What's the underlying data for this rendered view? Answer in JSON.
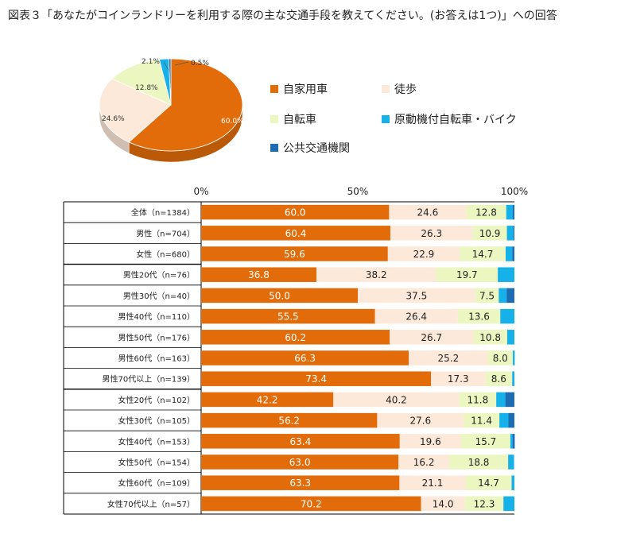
{
  "title": "図表３「あなたがコインランドリーを利用する際の主な交通手段を教えてください。(お答えは1つ)」への回答",
  "colors": {
    "car": "#E36C0A",
    "walk": "#FDE9D9",
    "bike": "#EBF6C1",
    "moped": "#17B1E9",
    "public": "#1C6CB4"
  },
  "legend": [
    {
      "label": "自家用車",
      "color_key": "car"
    },
    {
      "label": "徒歩",
      "color_key": "walk"
    },
    {
      "label": "自転車",
      "color_key": "bike"
    },
    {
      "label": "原動機付自転車・バイク",
      "color_key": "moped"
    },
    {
      "label": "公共交通機関",
      "color_key": "public"
    }
  ],
  "chart_data": [
    {
      "type": "pie",
      "slices": [
        {
          "name": "自家用車",
          "value": 60.0,
          "label": "60.0%"
        },
        {
          "name": "徒歩",
          "value": 24.6,
          "label": "24.6%"
        },
        {
          "name": "自転車",
          "value": 12.8,
          "label": "12.8%"
        },
        {
          "name": "原動機付自転車・バイク",
          "value": 2.1,
          "label": "2.1%"
        },
        {
          "name": "公共交通機関",
          "value": 0.5,
          "label": "0.5%"
        }
      ]
    },
    {
      "type": "bar",
      "stacked": true,
      "orientation": "horizontal",
      "xlim": [
        0,
        100
      ],
      "xticks": [
        "0%",
        "50%",
        "100%"
      ],
      "categories": [
        "全体（n=1384）",
        "男性（n=704）",
        "女性（n=680）",
        "男性20代（n=76）",
        "男性30代（n=40）",
        "男性40代（n=110）",
        "男性50代（n=176）",
        "男性60代（n=163）",
        "男性70代以上（n=139）",
        "女性20代（n=102）",
        "女性30代（n=105）",
        "女性40代（n=153）",
        "女性50代（n=154）",
        "女性60代（n=109）",
        "女性70代以上（n=57）"
      ],
      "series": [
        {
          "name": "自家用車",
          "values": [
            60.0,
            60.4,
            59.6,
            36.8,
            50.0,
            55.5,
            60.2,
            66.3,
            73.4,
            42.2,
            56.2,
            63.4,
            63.0,
            63.3,
            70.2
          ]
        },
        {
          "name": "徒歩",
          "values": [
            24.6,
            26.3,
            22.9,
            38.2,
            37.5,
            26.4,
            26.7,
            25.2,
            17.3,
            40.2,
            27.6,
            19.6,
            16.2,
            21.1,
            14.0
          ]
        },
        {
          "name": "自転車",
          "values": [
            12.8,
            10.9,
            14.7,
            19.7,
            7.5,
            13.6,
            10.8,
            8.0,
            8.6,
            11.8,
            11.4,
            15.7,
            18.8,
            14.7,
            12.3
          ]
        },
        {
          "name": "原動機付自転車・バイク",
          "values": [
            2.1,
            2.1,
            2.1,
            5.3,
            2.5,
            4.5,
            2.3,
            0.6,
            0.7,
            2.9,
            2.9,
            0.7,
            1.9,
            0.9,
            3.5
          ]
        },
        {
          "name": "公共交通機関",
          "values": [
            0.5,
            0.3,
            0.7,
            0.0,
            2.5,
            0.0,
            0.0,
            0.0,
            0.0,
            2.9,
            1.9,
            0.7,
            0.0,
            0.0,
            0.0
          ]
        }
      ]
    }
  ]
}
